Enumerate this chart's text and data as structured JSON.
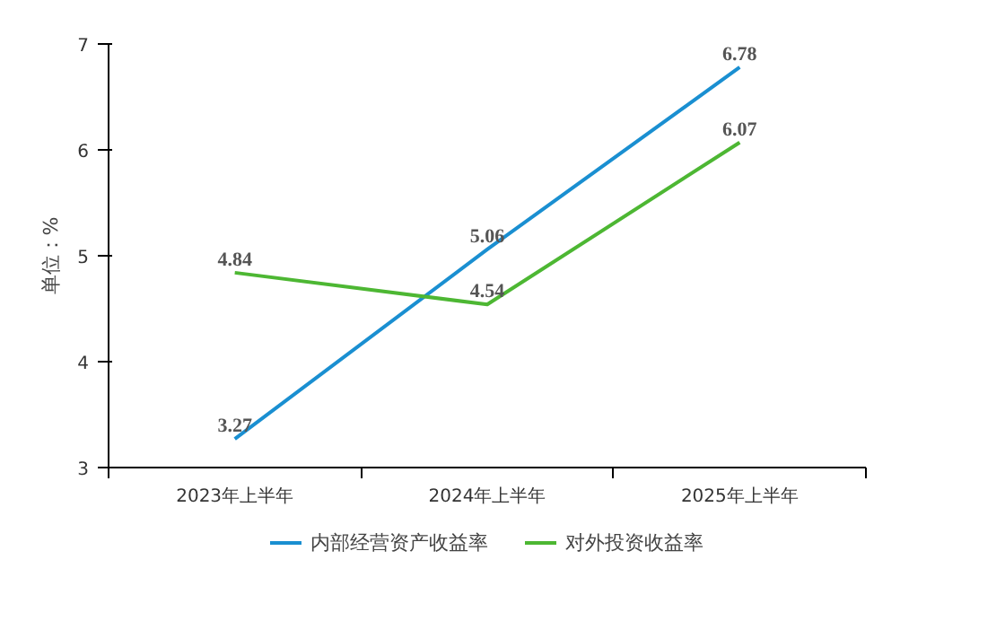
{
  "chart_data": {
    "type": "line",
    "ylabel": "单位：%",
    "categories": [
      "2023年上半年",
      "2024年上半年",
      "2025年上半年"
    ],
    "series": [
      {
        "name": "内部经营资产收益率",
        "color": "#1a8fd1",
        "values": [
          3.27,
          5.06,
          6.78
        ]
      },
      {
        "name": "对外投资收益率",
        "color": "#4db733",
        "values": [
          4.84,
          4.54,
          6.07
        ]
      }
    ],
    "ylim": [
      3,
      7
    ],
    "yticks": [
      3,
      4,
      5,
      6,
      7
    ],
    "grid": false,
    "legend": "bottom",
    "data_labels": true,
    "marker": "none",
    "line_style": "solid"
  }
}
